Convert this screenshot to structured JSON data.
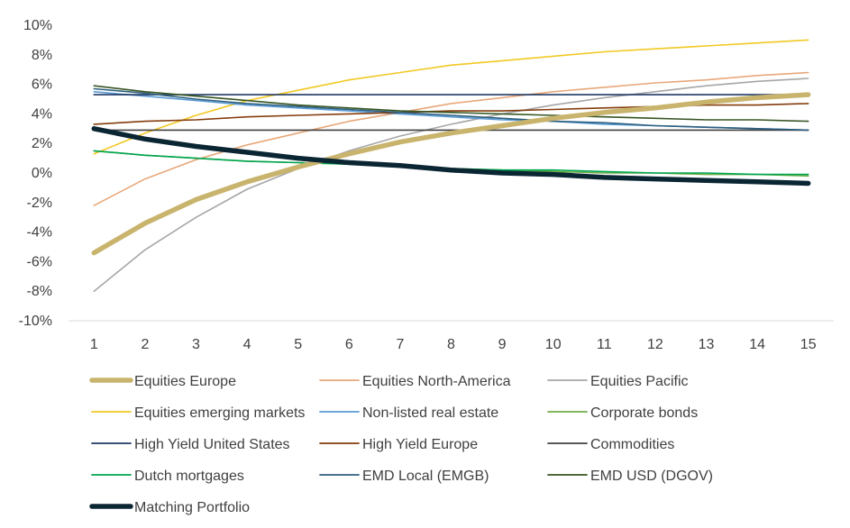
{
  "chart_data": {
    "type": "line",
    "title": "",
    "xlabel": "",
    "ylabel": "",
    "x": [
      1,
      2,
      3,
      4,
      5,
      6,
      7,
      8,
      9,
      10,
      11,
      12,
      13,
      14,
      15
    ],
    "ylim": [
      -10,
      10
    ],
    "y_ticks": [
      -10,
      -8,
      -6,
      -4,
      -2,
      0,
      2,
      4,
      6,
      8,
      10
    ],
    "y_tick_labels": [
      "-10%",
      "-8%",
      "-6%",
      "-4%",
      "-2%",
      "0%",
      "2%",
      "4%",
      "6%",
      "8%",
      "10%"
    ],
    "x_tick_labels": [
      "1",
      "2",
      "3",
      "4",
      "5",
      "6",
      "7",
      "8",
      "9",
      "10",
      "11",
      "12",
      "13",
      "14",
      "15"
    ],
    "grid": false,
    "legend_position": "bottom",
    "series": [
      {
        "name": "Equities Europe",
        "color": "#C9B46E",
        "values": [
          -5.4,
          -3.4,
          -1.8,
          -0.6,
          0.4,
          1.3,
          2.1,
          2.7,
          3.2,
          3.7,
          4.1,
          4.4,
          4.8,
          5.1,
          5.3
        ]
      },
      {
        "name": "Equities North-America",
        "color": "#E8A87A",
        "values": [
          -2.2,
          -0.4,
          0.9,
          1.9,
          2.7,
          3.5,
          4.1,
          4.7,
          5.1,
          5.5,
          5.8,
          6.1,
          6.3,
          6.6,
          6.8
        ]
      },
      {
        "name": "Equities Pacific",
        "color": "#A6A6A6",
        "values": [
          -8.0,
          -5.2,
          -3.0,
          -1.1,
          0.3,
          1.5,
          2.5,
          3.3,
          4.0,
          4.6,
          5.1,
          5.5,
          5.9,
          6.2,
          6.4
        ]
      },
      {
        "name": "Equities emerging markets",
        "color": "#F2C823",
        "values": [
          1.3,
          2.7,
          3.9,
          4.9,
          5.6,
          6.3,
          6.8,
          7.3,
          7.6,
          7.9,
          8.2,
          8.4,
          8.6,
          8.8,
          9.0
        ]
      },
      {
        "name": "Non-listed real estate",
        "color": "#5B9BD5",
        "values": [
          5.5,
          5.2,
          4.9,
          4.6,
          4.4,
          4.2,
          4.0,
          3.8,
          3.6,
          3.5,
          3.3,
          3.2,
          3.1,
          3.0,
          2.9
        ]
      },
      {
        "name": "Corporate bonds",
        "color": "#70AD47",
        "values": [
          1.5,
          1.2,
          1.0,
          0.8,
          0.7,
          0.6,
          0.5,
          0.3,
          0.2,
          0.1,
          0.0,
          0.0,
          -0.1,
          -0.1,
          -0.2
        ]
      },
      {
        "name": "High Yield United States",
        "color": "#1F3864",
        "values": [
          5.3,
          5.3,
          5.3,
          5.3,
          5.3,
          5.3,
          5.3,
          5.3,
          5.3,
          5.3,
          5.3,
          5.3,
          5.3,
          5.3,
          5.3
        ]
      },
      {
        "name": "High Yield Europe",
        "color": "#843C0C",
        "values": [
          3.3,
          3.5,
          3.6,
          3.8,
          3.9,
          4.0,
          4.1,
          4.2,
          4.2,
          4.3,
          4.4,
          4.5,
          4.6,
          4.6,
          4.7
        ]
      },
      {
        "name": "Commodities",
        "color": "#404040",
        "values": [
          2.9,
          2.9,
          2.9,
          2.9,
          2.9,
          2.9,
          2.9,
          2.9,
          2.9,
          2.9,
          2.9,
          2.9,
          2.9,
          2.9,
          2.9
        ]
      },
      {
        "name": "Dutch mortgages",
        "color": "#00A651",
        "values": [
          1.5,
          1.2,
          1.0,
          0.8,
          0.7,
          0.6,
          0.5,
          0.3,
          0.2,
          0.2,
          0.1,
          0.0,
          0.0,
          -0.1,
          -0.1
        ]
      },
      {
        "name": "EMD Local (EMGB)",
        "color": "#2E5F7F",
        "values": [
          5.7,
          5.4,
          5.0,
          4.7,
          4.5,
          4.3,
          4.1,
          3.9,
          3.7,
          3.5,
          3.4,
          3.2,
          3.1,
          3.0,
          2.9
        ]
      },
      {
        "name": "EMD USD (DGOV)",
        "color": "#375623",
        "values": [
          5.9,
          5.5,
          5.2,
          4.9,
          4.6,
          4.4,
          4.2,
          4.1,
          4.0,
          3.9,
          3.8,
          3.7,
          3.6,
          3.6,
          3.5
        ]
      },
      {
        "name": "Matching Portfolio",
        "color": "#0B2633",
        "values": [
          3.0,
          2.3,
          1.8,
          1.4,
          1.0,
          0.7,
          0.5,
          0.2,
          0.0,
          -0.1,
          -0.3,
          -0.4,
          -0.5,
          -0.6,
          -0.7
        ]
      }
    ]
  }
}
